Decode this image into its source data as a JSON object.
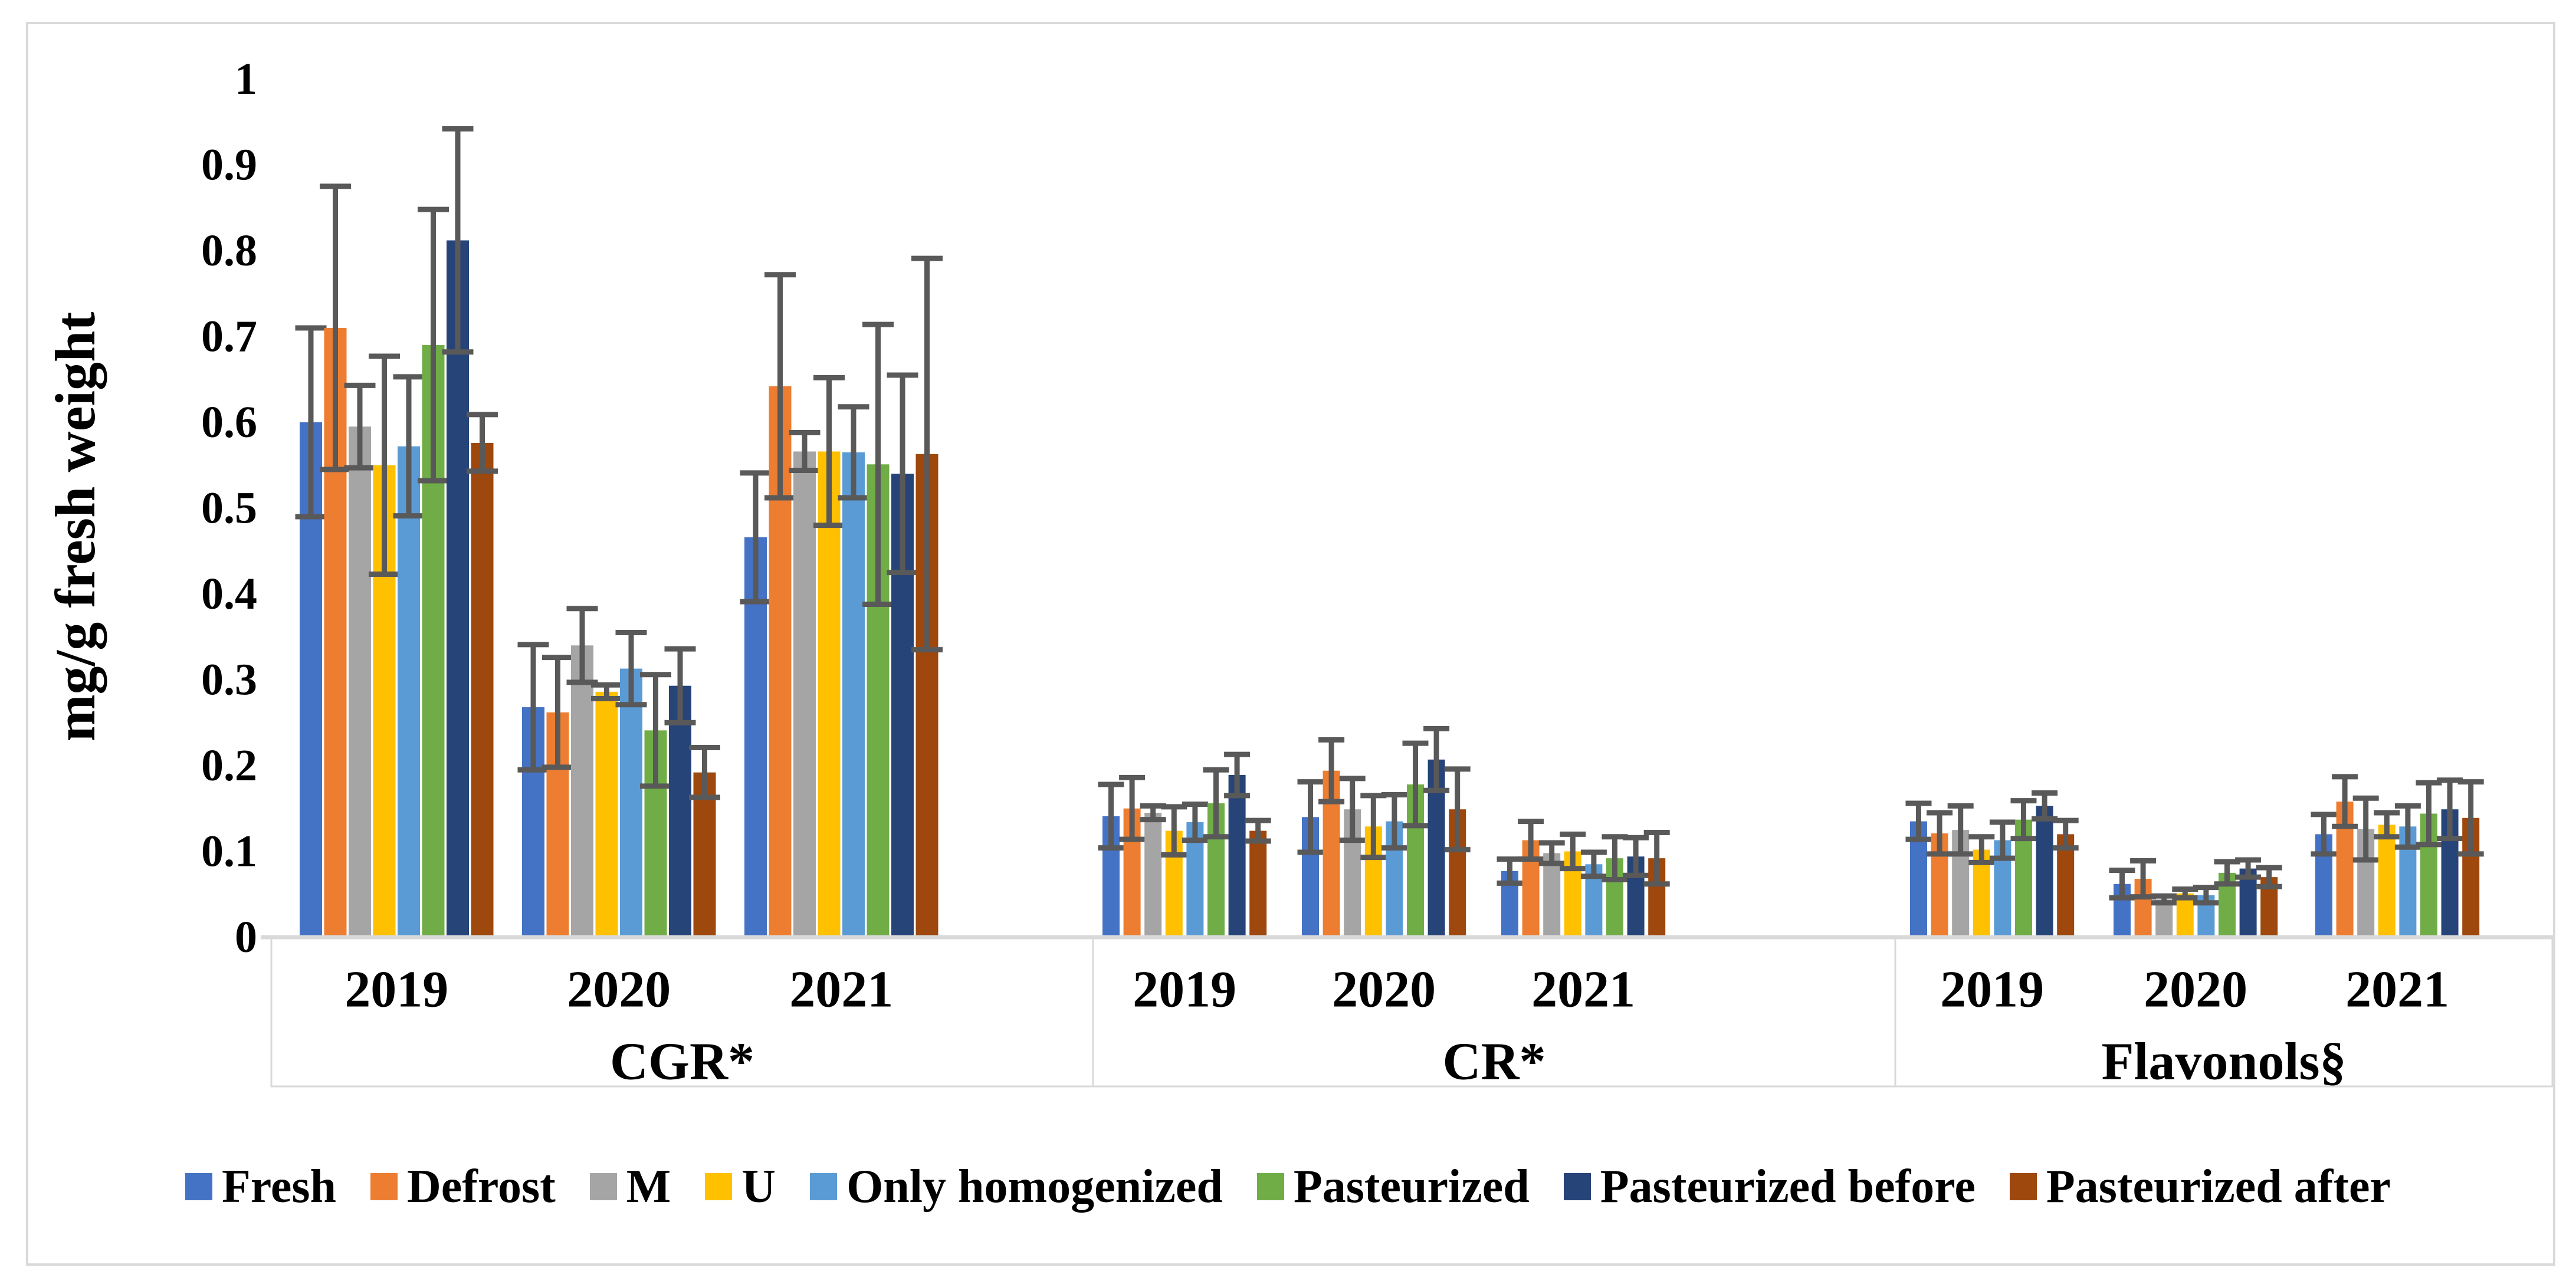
{
  "figure": {
    "y_axis_title": "mg/g fresh weight"
  },
  "chart_data": {
    "type": "bar",
    "title": "",
    "xlabel": "",
    "ylabel": "mg/g fresh weight",
    "ylim": [
      0,
      1
    ],
    "ytick_labels": [
      "0",
      "0.1",
      "0.2",
      "0.3",
      "0.4",
      "0.5",
      "0.6",
      "0.7",
      "0.8",
      "0.9",
      "1"
    ],
    "grid": false,
    "legend_position": "bottom",
    "error_bar_color": "#595959",
    "axis_line_color": "#D9D9D9",
    "group_labels": [
      "CGR*",
      "CR*",
      "Flavonols§"
    ],
    "categories": [
      "2019",
      "2020",
      "2021"
    ],
    "series": [
      {
        "name": "Fresh",
        "color": "#4472C4",
        "values": [
          [
            0.6,
            0.268,
            0.466
          ],
          [
            0.141,
            0.14,
            0.077
          ],
          [
            0.135,
            0.062,
            0.12
          ]
        ],
        "errors": [
          [
            0.11,
            0.073,
            0.075
          ],
          [
            0.037,
            0.041,
            0.014
          ],
          [
            0.021,
            0.016,
            0.023
          ]
        ]
      },
      {
        "name": "Defrost",
        "color": "#ED7D31",
        "values": [
          [
            0.71,
            0.262,
            0.642
          ],
          [
            0.15,
            0.194,
            0.113
          ],
          [
            0.121,
            0.068,
            0.158
          ]
        ],
        "errors": [
          [
            0.165,
            0.064,
            0.13
          ],
          [
            0.036,
            0.036,
            0.022
          ],
          [
            0.024,
            0.021,
            0.029
          ]
        ]
      },
      {
        "name": "M",
        "color": "#A5A5A5",
        "values": [
          [
            0.595,
            0.34,
            0.566
          ],
          [
            0.145,
            0.149,
            0.098
          ],
          [
            0.125,
            0.044,
            0.126
          ]
        ],
        "errors": [
          [
            0.048,
            0.043,
            0.022
          ],
          [
            0.008,
            0.036,
            0.012
          ],
          [
            0.028,
            0.004,
            0.036
          ]
        ]
      },
      {
        "name": "U",
        "color": "#FFC000",
        "values": [
          [
            0.55,
            0.286,
            0.566
          ],
          [
            0.124,
            0.129,
            0.1
          ],
          [
            0.102,
            0.051,
            0.131
          ]
        ],
        "errors": [
          [
            0.127,
            0.008,
            0.086
          ],
          [
            0.028,
            0.036,
            0.02
          ],
          [
            0.015,
            0.005,
            0.014
          ]
        ]
      },
      {
        "name": "Only homogenized",
        "color": "#5B9BD5",
        "values": [
          [
            0.572,
            0.313,
            0.565
          ],
          [
            0.134,
            0.135,
            0.085
          ],
          [
            0.113,
            0.049,
            0.129
          ]
        ],
        "errors": [
          [
            0.081,
            0.042,
            0.053
          ],
          [
            0.021,
            0.031,
            0.014
          ],
          [
            0.021,
            0.009,
            0.024
          ]
        ]
      },
      {
        "name": "Pasteurized",
        "color": "#70AD47",
        "values": [
          [
            0.69,
            0.241,
            0.551
          ],
          [
            0.156,
            0.178,
            0.092
          ],
          [
            0.137,
            0.075,
            0.144
          ]
        ],
        "errors": [
          [
            0.158,
            0.065,
            0.163
          ],
          [
            0.039,
            0.048,
            0.025
          ],
          [
            0.022,
            0.013,
            0.036
          ]
        ]
      },
      {
        "name": "Pasteurized before",
        "color": "#264478",
        "values": [
          [
            0.812,
            0.293,
            0.54
          ],
          [
            0.189,
            0.207,
            0.094
          ],
          [
            0.153,
            0.08,
            0.149
          ]
        ],
        "errors": [
          [
            0.13,
            0.043,
            0.115
          ],
          [
            0.024,
            0.036,
            0.022
          ],
          [
            0.015,
            0.01,
            0.034
          ]
        ]
      },
      {
        "name": "Pasteurized after",
        "color": "#9E480E",
        "values": [
          [
            0.576,
            0.192,
            0.563
          ],
          [
            0.124,
            0.149,
            0.092
          ],
          [
            0.12,
            0.07,
            0.139
          ]
        ],
        "errors": [
          [
            0.033,
            0.029,
            0.228
          ],
          [
            0.012,
            0.047,
            0.03
          ],
          [
            0.016,
            0.011,
            0.042
          ]
        ]
      }
    ]
  }
}
